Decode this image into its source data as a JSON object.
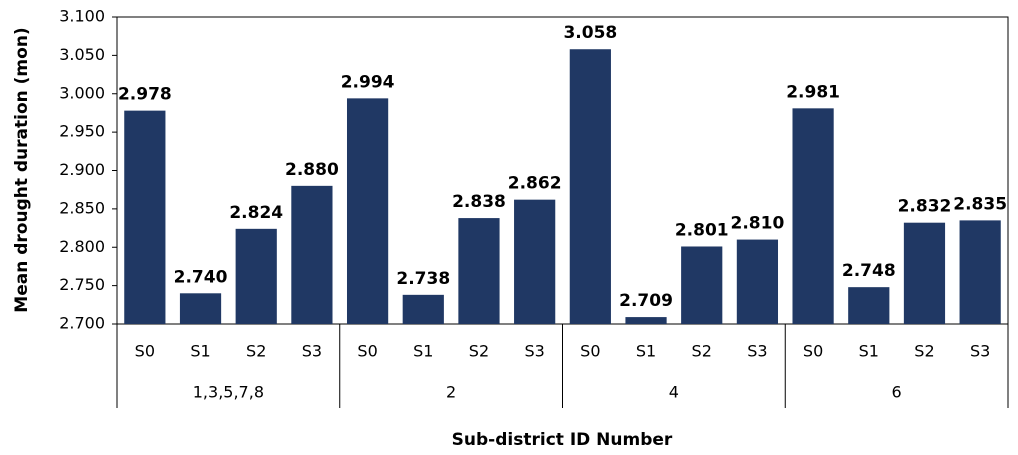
{
  "chart_data": {
    "type": "bar",
    "y_label": "Mean drought duration (mon)",
    "x_label": "Sub-district ID Number",
    "categories": [
      "S0",
      "S1",
      "S2",
      "S3",
      "S0",
      "S1",
      "S2",
      "S3",
      "S0",
      "S1",
      "S2",
      "S3",
      "S0",
      "S1",
      "S2",
      "S3"
    ],
    "groups": [
      "1,3,5,7,8",
      "2",
      "4",
      "6"
    ],
    "values": [
      2.978,
      2.74,
      2.824,
      2.88,
      2.994,
      2.738,
      2.838,
      2.862,
      3.058,
      2.709,
      2.801,
      2.81,
      2.981,
      2.748,
      2.832,
      2.835
    ],
    "value_labels": [
      "2.978",
      "2.740",
      "2.824",
      "2.880",
      "2.994",
      "2.738",
      "2.838",
      "2.862",
      "3.058",
      "2.709",
      "2.801",
      "2.810",
      "2.981",
      "2.748",
      "2.832",
      "2.835"
    ],
    "color": "#203864",
    "ylim": [
      2.7,
      3.1
    ],
    "yticks": [
      {
        "value": 2.7,
        "label": "2.700"
      },
      {
        "value": 2.75,
        "label": "2.750"
      },
      {
        "value": 2.8,
        "label": "2.800"
      },
      {
        "value": 2.85,
        "label": "2.850"
      },
      {
        "value": 2.9,
        "label": "2.900"
      },
      {
        "value": 2.95,
        "label": "2.950"
      },
      {
        "value": 3.0,
        "label": "3.000"
      },
      {
        "value": 3.05,
        "label": "3.050"
      },
      {
        "value": 3.1,
        "label": "3.100"
      }
    ],
    "grid": false
  }
}
